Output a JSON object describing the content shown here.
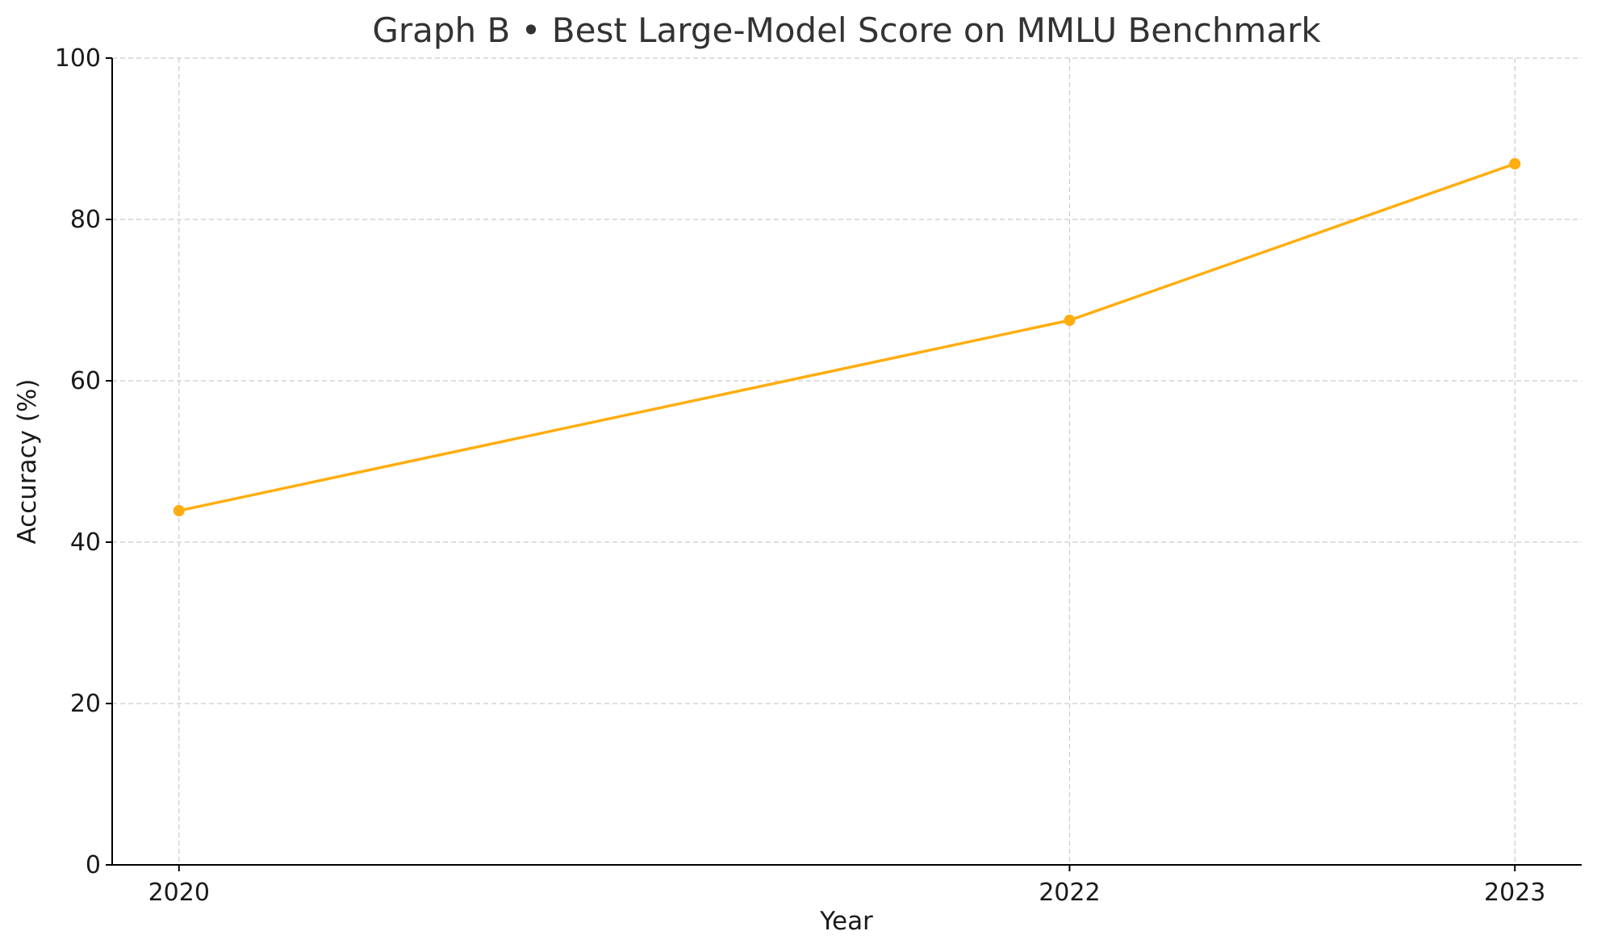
{
  "chart_data": {
    "type": "line",
    "title": "Graph B • Best Large-Model Score on MMLU Benchmark",
    "xlabel": "Year",
    "ylabel": "Accuracy (%)",
    "x": [
      2020,
      2022,
      2023
    ],
    "x_tick_labels": [
      "2020",
      "2022",
      "2023"
    ],
    "xlim": [
      2019.85,
      2023.15
    ],
    "ylim": [
      0,
      100
    ],
    "y_ticks": [
      0,
      20,
      40,
      60,
      80,
      100
    ],
    "grid": true,
    "series": [
      {
        "values": [
          43.9,
          67.5,
          86.9
        ],
        "color": "#ffad0f",
        "marker": "circle"
      }
    ]
  }
}
